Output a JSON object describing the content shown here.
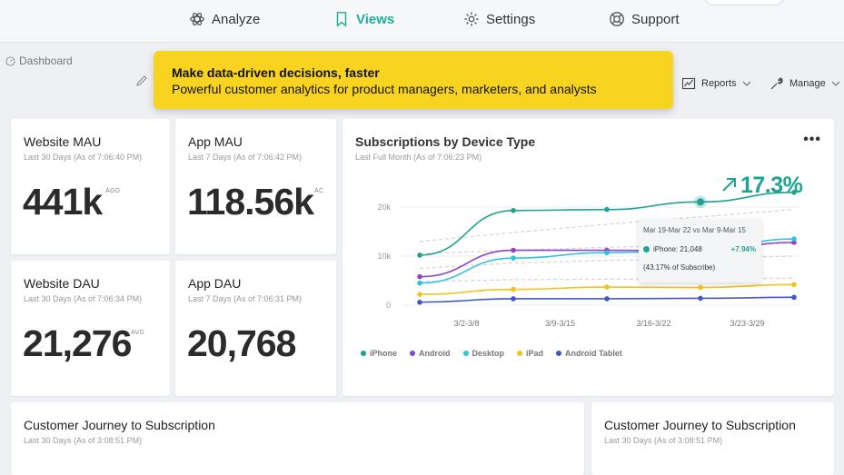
{
  "nav": {
    "items": [
      {
        "label": "Analyze",
        "icon": "atom-icon"
      },
      {
        "label": "Views",
        "icon": "bookmark-icon"
      },
      {
        "label": "Settings",
        "icon": "gear-icon"
      },
      {
        "label": "Support",
        "icon": "lifebuoy-icon"
      }
    ],
    "active": "Views"
  },
  "breadcrumb": {
    "label": "Dashboard"
  },
  "banner": {
    "title": "Make data-driven decisions, faster",
    "subtitle": "Powerful customer analytics for product managers, marketers, and analysts"
  },
  "toolbar": {
    "reports_label": "Reports",
    "manage_label": "Manage"
  },
  "metrics": [
    {
      "title": "Website MAU",
      "subtitle": "Last 30 Days (As of 7:06:40 PM)",
      "value": "441k",
      "tag": "AGG"
    },
    {
      "title": "App MAU",
      "subtitle": "Last 7 Days (As of 7:06:42 PM)",
      "value": "118.56k",
      "tag": "AC"
    },
    {
      "title": "Website DAU",
      "subtitle": "Last 30 Days (As of 7:06:34 PM)",
      "value": "21,276",
      "tag": "AVG"
    },
    {
      "title": "App DAU",
      "subtitle": "Last 7 Days (As of 7:06:31 PM)",
      "value": "20,768",
      "tag": ""
    }
  ],
  "subscriptions": {
    "title": "Subscriptions by Device Type",
    "subtitle": "Last Full Month (As of 7:06:23 PM)",
    "highlight": "17.3%",
    "tooltip": {
      "range": "Mar 19-Mar 22 vs Mar 9-Mar 15",
      "series_label": "iPhone: 21,048",
      "delta": "+7.94%",
      "share": "(43.17% of Subscribe)"
    }
  },
  "chart_data": {
    "type": "line",
    "title": "Subscriptions by Device Type",
    "x": [
      0,
      1,
      2,
      3,
      4
    ],
    "x_tick_labels": [
      "3/2-3/8",
      "3/9-3/15",
      "3/16-3/22",
      "3/23-3/29"
    ],
    "y_tick_labels": [
      "0",
      "10k",
      "20k"
    ],
    "ylim": [
      0,
      25000
    ],
    "grid": true,
    "legend": "bottom",
    "series": [
      {
        "name": "iPhone",
        "color": "#1ea392",
        "values": [
          10200,
          19300,
          19500,
          21048,
          23000
        ]
      },
      {
        "name": "Android",
        "color": "#8e44c9",
        "values": [
          5800,
          11200,
          11200,
          11000,
          12800
        ]
      },
      {
        "name": "Desktop",
        "color": "#31c3dd",
        "values": [
          4500,
          9600,
          10700,
          11200,
          13500
        ]
      },
      {
        "name": "iPad",
        "color": "#f0c419",
        "values": [
          2200,
          3200,
          3700,
          3600,
          4200
        ]
      },
      {
        "name": "Android Tablet",
        "color": "#4058c7",
        "values": [
          600,
          1300,
          1300,
          1400,
          1600
        ]
      }
    ]
  },
  "journey_cards": [
    {
      "title": "Customer Journey to Subscription",
      "subtitle": "Last 30 Days (As of 3:08:51 PM)"
    },
    {
      "title": "Customer Journey to Subscription",
      "subtitle": "Last 30 Days (As of 3:08:51 PM)"
    }
  ]
}
